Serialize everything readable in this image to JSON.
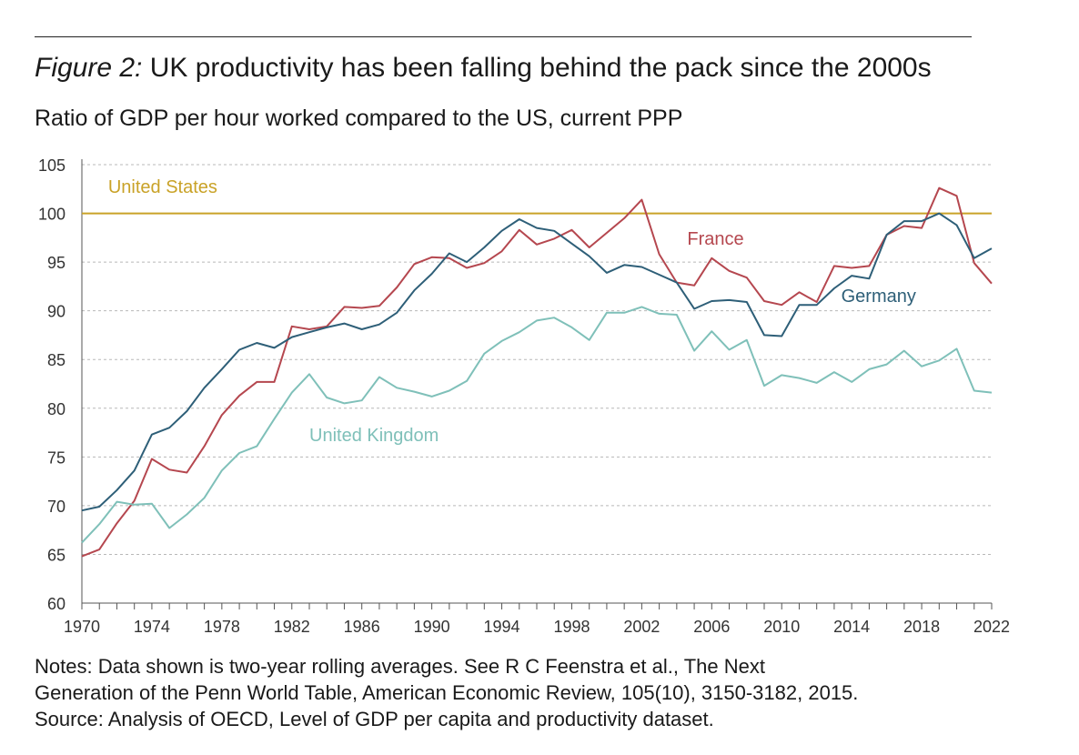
{
  "header": {
    "figure_label": "Figure 2:",
    "title_text": "UK productivity has been falling behind the pack since the 2000s",
    "subtitle": "Ratio of GDP per hour worked compared to the US, current PPP"
  },
  "notes": {
    "line1": "Notes: Data shown is two-year rolling averages. See R C Feenstra et al., The Next",
    "line2": "Generation of the Penn World Table, American Economic Review, 105(10), 3150-3182, 2015.",
    "line3": "Source: Analysis of OECD, Level of GDP per capita and productivity dataset."
  },
  "chart_data": {
    "type": "line",
    "xlabel": "",
    "ylabel": "",
    "xlim": [
      1970,
      2022
    ],
    "ylim": [
      60,
      105
    ],
    "y_ticks": [
      60,
      65,
      70,
      75,
      80,
      85,
      90,
      95,
      100,
      105
    ],
    "x_tick_labels": [
      1970,
      1974,
      1978,
      1982,
      1986,
      1990,
      1994,
      1998,
      2002,
      2006,
      2010,
      2014,
      2018,
      2022
    ],
    "grid": "horizontal dashed",
    "x": [
      1970,
      1971,
      1972,
      1973,
      1974,
      1975,
      1976,
      1977,
      1978,
      1979,
      1980,
      1981,
      1982,
      1983,
      1984,
      1985,
      1986,
      1987,
      1988,
      1989,
      1990,
      1991,
      1992,
      1993,
      1994,
      1995,
      1996,
      1997,
      1998,
      1999,
      2000,
      2001,
      2002,
      2003,
      2004,
      2005,
      2006,
      2007,
      2008,
      2009,
      2010,
      2011,
      2012,
      2013,
      2014,
      2015,
      2016,
      2017,
      2018,
      2019,
      2020,
      2021,
      2022
    ],
    "series": [
      {
        "name": "United States",
        "color": "#c9a227",
        "values": [
          100,
          100,
          100,
          100,
          100,
          100,
          100,
          100,
          100,
          100,
          100,
          100,
          100,
          100,
          100,
          100,
          100,
          100,
          100,
          100,
          100,
          100,
          100,
          100,
          100,
          100,
          100,
          100,
          100,
          100,
          100,
          100,
          100,
          100,
          100,
          100,
          100,
          100,
          100,
          100,
          100,
          100,
          100,
          100,
          100,
          100,
          100,
          100,
          100,
          100,
          100,
          100,
          100
        ]
      },
      {
        "name": "France",
        "color": "#b5474f",
        "values": [
          64.8,
          65.5,
          68.2,
          70.5,
          74.8,
          73.7,
          73.4,
          76.1,
          79.3,
          81.3,
          82.7,
          82.7,
          88.4,
          88.1,
          88.4,
          90.4,
          90.3,
          90.5,
          92.4,
          94.8,
          95.5,
          95.4,
          94.4,
          94.9,
          96.1,
          98.3,
          96.8,
          97.4,
          98.3,
          96.5,
          98.0,
          99.5,
          101.4,
          95.8,
          92.9,
          92.6,
          95.4,
          94.1,
          93.4,
          91.0,
          90.6,
          91.9,
          90.9,
          94.6,
          94.4,
          94.6,
          97.8,
          98.7,
          98.5,
          102.6,
          101.8,
          94.9,
          92.8
        ]
      },
      {
        "name": "Germany",
        "color": "#2e5f78",
        "values": [
          69.5,
          69.9,
          71.6,
          73.6,
          77.3,
          78.0,
          79.7,
          82.1,
          84.0,
          86.0,
          86.7,
          86.2,
          87.3,
          87.8,
          88.3,
          88.7,
          88.1,
          88.6,
          89.8,
          92.1,
          93.8,
          95.9,
          95.0,
          96.5,
          98.2,
          99.4,
          98.5,
          98.2,
          96.9,
          95.6,
          93.9,
          94.7,
          94.5,
          93.7,
          92.9,
          90.2,
          91.0,
          91.1,
          90.9,
          87.5,
          87.4,
          90.6,
          90.6,
          92.3,
          93.6,
          93.3,
          97.8,
          99.2,
          99.2,
          100.0,
          98.8,
          95.4,
          96.4
        ]
      },
      {
        "name": "United Kingdom",
        "color": "#7fc0b9",
        "values": [
          66.2,
          68.1,
          70.4,
          70.1,
          70.2,
          67.7,
          69.1,
          70.8,
          73.6,
          75.4,
          76.1,
          78.9,
          81.6,
          83.5,
          81.1,
          80.5,
          80.8,
          83.2,
          82.1,
          81.7,
          81.2,
          81.8,
          82.8,
          85.6,
          86.9,
          87.8,
          89.0,
          89.3,
          88.3,
          87.0,
          89.8,
          89.8,
          90.4,
          89.7,
          89.6,
          85.9,
          87.9,
          86.0,
          87.0,
          82.3,
          83.4,
          83.1,
          82.6,
          83.7,
          82.7,
          84.0,
          84.5,
          85.9,
          84.3,
          84.9,
          86.1,
          81.8,
          81.6
        ]
      }
    ],
    "annotations": [
      {
        "text": "United States",
        "series": "United States"
      },
      {
        "text": "France",
        "series": "France"
      },
      {
        "text": "Germany",
        "series": "Germany"
      },
      {
        "text": "United Kingdom",
        "series": "United Kingdom"
      }
    ]
  }
}
